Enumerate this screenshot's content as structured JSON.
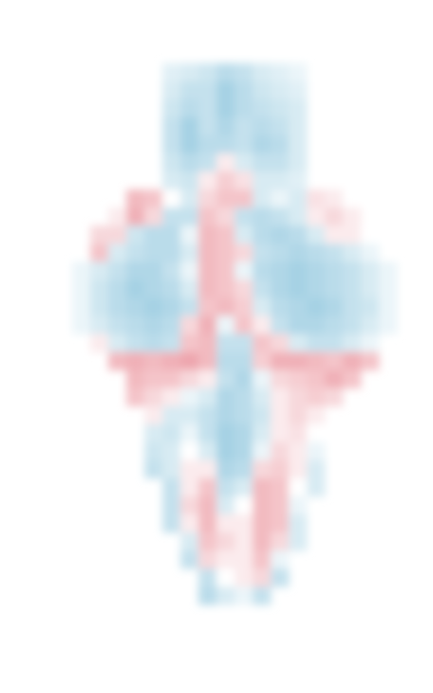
{
  "chart_data": {
    "type": "heatmap",
    "tick_labels": false,
    "zlim": [
      -1,
      1
    ],
    "cells": [
      [
        null,
        null,
        null,
        null,
        null,
        -0.15,
        -0.2,
        -0.25,
        -0.35,
        -0.3,
        -0.2,
        -0.15,
        -0.1,
        null,
        null,
        null,
        null,
        null
      ],
      [
        null,
        null,
        null,
        null,
        null,
        -0.2,
        -0.3,
        -0.3,
        -0.45,
        -0.35,
        -0.25,
        -0.2,
        -0.15,
        null,
        null,
        null,
        null,
        null
      ],
      [
        null,
        null,
        null,
        null,
        null,
        -0.25,
        -0.35,
        -0.3,
        -0.45,
        -0.35,
        -0.3,
        -0.25,
        -0.2,
        null,
        null,
        null,
        null,
        null
      ],
      [
        null,
        null,
        null,
        null,
        null,
        -0.3,
        -0.45,
        -0.3,
        -0.4,
        -0.3,
        -0.35,
        -0.3,
        -0.2,
        null,
        null,
        null,
        null,
        null
      ],
      [
        null,
        null,
        null,
        null,
        null,
        -0.3,
        -0.45,
        -0.35,
        -0.35,
        -0.3,
        -0.4,
        -0.35,
        -0.2,
        null,
        null,
        null,
        null,
        null
      ],
      [
        null,
        null,
        null,
        null,
        null,
        -0.25,
        -0.35,
        -0.3,
        0.1,
        -0.2,
        -0.3,
        -0.3,
        -0.2,
        null,
        null,
        null,
        null,
        null
      ],
      [
        null,
        null,
        null,
        null,
        null,
        -0.2,
        -0.25,
        0.1,
        0.25,
        0.15,
        -0.2,
        -0.2,
        -0.15,
        null,
        null,
        null,
        null,
        null
      ],
      [
        null,
        null,
        null,
        0.35,
        0.3,
        0.0,
        -0.2,
        0.2,
        0.3,
        0.3,
        -0.2,
        -0.1,
        -0.2,
        0.15,
        0.1,
        0.0,
        null,
        null
      ],
      [
        null,
        null,
        0.1,
        0.4,
        0.2,
        -0.3,
        -0.3,
        0.3,
        0.2,
        -0.3,
        -0.35,
        -0.3,
        -0.2,
        0.1,
        0.2,
        0.1,
        null,
        null
      ],
      [
        null,
        0.2,
        0.2,
        -0.25,
        -0.35,
        -0.35,
        -0.1,
        0.35,
        0.3,
        -0.2,
        -0.35,
        -0.4,
        -0.35,
        -0.2,
        0.1,
        0.1,
        0.0,
        null
      ],
      [
        null,
        0.3,
        -0.2,
        -0.3,
        -0.35,
        -0.35,
        -0.2,
        0.35,
        0.3,
        0.2,
        -0.3,
        -0.35,
        -0.4,
        -0.35,
        -0.3,
        -0.2,
        -0.1,
        null
      ],
      [
        -0.1,
        -0.2,
        -0.3,
        -0.4,
        -0.4,
        -0.3,
        -0.1,
        0.35,
        0.3,
        -0.1,
        -0.35,
        -0.4,
        -0.45,
        -0.4,
        -0.35,
        -0.3,
        -0.2,
        -0.1
      ],
      [
        -0.1,
        -0.25,
        -0.35,
        -0.45,
        -0.4,
        -0.35,
        -0.2,
        0.35,
        0.3,
        0.2,
        -0.3,
        -0.4,
        -0.45,
        -0.4,
        -0.35,
        -0.3,
        -0.2,
        -0.1
      ],
      [
        -0.1,
        -0.25,
        -0.35,
        -0.4,
        -0.45,
        -0.4,
        -0.3,
        0.3,
        0.35,
        0.25,
        -0.2,
        -0.35,
        -0.4,
        -0.45,
        -0.4,
        -0.3,
        -0.25,
        -0.1
      ],
      [
        -0.1,
        -0.2,
        -0.3,
        -0.35,
        -0.4,
        -0.35,
        0.2,
        0.4,
        -0.1,
        0.3,
        0.1,
        -0.3,
        -0.4,
        -0.4,
        -0.35,
        -0.3,
        -0.2,
        -0.1
      ],
      [
        null,
        0.1,
        -0.2,
        -0.3,
        -0.35,
        -0.3,
        0.3,
        0.35,
        -0.3,
        -0.3,
        0.3,
        0.2,
        -0.2,
        -0.3,
        -0.3,
        -0.2,
        -0.1,
        null
      ],
      [
        null,
        null,
        0.35,
        0.4,
        0.35,
        0.4,
        0.45,
        0.35,
        -0.35,
        -0.35,
        0.25,
        0.4,
        0.4,
        0.35,
        0.3,
        0.4,
        0.3,
        null
      ],
      [
        null,
        null,
        null,
        0.35,
        0.3,
        0.3,
        0.2,
        0.1,
        -0.3,
        -0.4,
        -0.1,
        0.2,
        0.25,
        0.3,
        0.4,
        0.3,
        null,
        null
      ],
      [
        null,
        null,
        null,
        0.3,
        0.2,
        0.1,
        -0.1,
        -0.2,
        -0.4,
        -0.35,
        -0.2,
        0.1,
        0.2,
        0.25,
        0.2,
        null,
        null,
        null
      ],
      [
        null,
        null,
        null,
        null,
        0.1,
        -0.2,
        -0.2,
        -0.3,
        -0.4,
        -0.35,
        -0.25,
        0.1,
        0.2,
        0.1,
        null,
        null,
        null,
        null
      ],
      [
        null,
        null,
        null,
        null,
        -0.2,
        -0.25,
        -0.1,
        -0.3,
        -0.45,
        -0.4,
        -0.2,
        0.1,
        0.15,
        0.0,
        null,
        null,
        null,
        null
      ],
      [
        null,
        null,
        null,
        null,
        -0.25,
        -0.2,
        0.0,
        -0.2,
        -0.45,
        -0.4,
        -0.1,
        0.2,
        0.1,
        -0.1,
        null,
        null,
        null,
        null
      ],
      [
        null,
        null,
        null,
        null,
        -0.3,
        -0.2,
        0.1,
        0.1,
        -0.4,
        -0.35,
        0.2,
        0.25,
        0.1,
        -0.2,
        null,
        null,
        null,
        null
      ],
      [
        null,
        null,
        null,
        null,
        null,
        -0.3,
        0.1,
        0.3,
        -0.3,
        -0.2,
        0.35,
        0.3,
        0.0,
        -0.2,
        null,
        null,
        null,
        null
      ],
      [
        null,
        null,
        null,
        null,
        null,
        -0.3,
        0.2,
        0.35,
        -0.2,
        0.0,
        0.35,
        0.3,
        -0.1,
        null,
        null,
        null,
        null,
        null
      ],
      [
        null,
        null,
        null,
        null,
        null,
        -0.3,
        0.1,
        0.35,
        0.1,
        0.1,
        0.35,
        0.3,
        -0.2,
        null,
        null,
        null,
        null,
        null
      ],
      [
        null,
        null,
        null,
        null,
        null,
        null,
        -0.2,
        0.3,
        0.2,
        0.1,
        0.35,
        0.2,
        -0.2,
        null,
        null,
        null,
        null,
        null
      ],
      [
        null,
        null,
        null,
        null,
        null,
        null,
        -0.3,
        0.2,
        0.1,
        0.1,
        0.3,
        -0.1,
        null,
        null,
        null,
        null,
        null,
        null
      ],
      [
        null,
        null,
        null,
        null,
        null,
        null,
        null,
        -0.3,
        0.0,
        0.1,
        0.2,
        -0.3,
        null,
        null,
        null,
        null,
        null,
        null
      ],
      [
        null,
        null,
        null,
        null,
        null,
        null,
        null,
        -0.35,
        -0.2,
        -0.1,
        -0.3,
        null,
        null,
        null,
        null,
        null,
        null,
        null
      ]
    ]
  }
}
